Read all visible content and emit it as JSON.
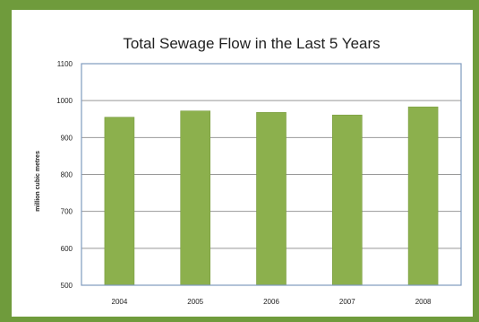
{
  "colors": {
    "frame": "#6f9b3c",
    "panel": "#ffffff",
    "bar": "#8cb04d",
    "bar_edge": "#7a9c40",
    "plot_border": "#7f9bbf",
    "grid": "#999999",
    "text": "#222222"
  },
  "chart_data": {
    "type": "bar",
    "title": "Total Sewage Flow in the Last 5 Years",
    "xlabel": "",
    "ylabel": "million cubic metres",
    "categories": [
      "2004",
      "2005",
      "2006",
      "2007",
      "2008"
    ],
    "values": [
      955,
      972,
      968,
      961,
      983
    ],
    "ylim": [
      500,
      1100
    ],
    "yticks": [
      500,
      600,
      700,
      800,
      900,
      1000,
      1100
    ],
    "grid": true,
    "legend": "none"
  }
}
